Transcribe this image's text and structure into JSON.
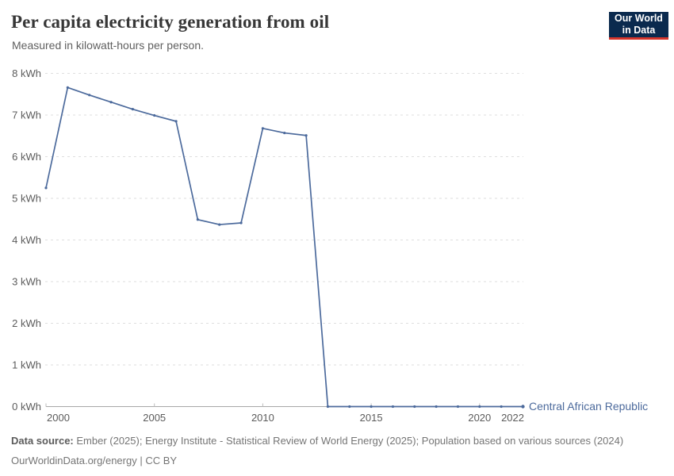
{
  "header": {
    "title": "Per capita electricity generation from oil",
    "subtitle": "Measured in kilowatt-hours per person.",
    "logo": {
      "line1": "Our World",
      "line2": "in Data"
    }
  },
  "footer": {
    "source_label": "Data source:",
    "source_text": " Ember (2025); Energy Institute - Statistical Review of World Energy (2025); Population based on various sources (2024)",
    "license_text": "OurWorldinData.org/energy | CC BY"
  },
  "colors": {
    "line": "#4C6A9C",
    "entity_label": "#4C6A9C",
    "grid": "#dedede",
    "axis": "#a8a8a8",
    "tick_text": "#5b5b5b",
    "logo_background": "#0b2a4e",
    "logo_stripe": "#d7352b",
    "title_text": "#373737"
  },
  "chart_data": {
    "type": "line",
    "title": "Per capita electricity generation from oil",
    "subtitle": "Measured in kilowatt-hours per person.",
    "unit": "kWh",
    "xlim": [
      2000,
      2022
    ],
    "ylim": [
      0,
      8
    ],
    "x_ticks": [
      2000,
      2005,
      2010,
      2015,
      2020,
      2022
    ],
    "y_ticks": [
      0,
      1,
      2,
      3,
      4,
      5,
      6,
      7,
      8
    ],
    "y_tick_suffix": " kWh",
    "grid": "horizontal-dashed",
    "legend": "end-of-line-label",
    "series": [
      {
        "name": "Central African Republic",
        "color": "#4C6A9C",
        "x": [
          2000,
          2001,
          2002,
          2003,
          2004,
          2005,
          2006,
          2007,
          2008,
          2009,
          2010,
          2011,
          2012,
          2013,
          2014,
          2015,
          2016,
          2017,
          2018,
          2019,
          2020,
          2021,
          2022
        ],
        "values": [
          5.25,
          7.66,
          7.48,
          7.31,
          7.14,
          6.99,
          6.85,
          4.49,
          4.37,
          4.41,
          6.68,
          6.57,
          6.51,
          0,
          0,
          0,
          0,
          0,
          0,
          0,
          0,
          0,
          0
        ]
      }
    ]
  }
}
